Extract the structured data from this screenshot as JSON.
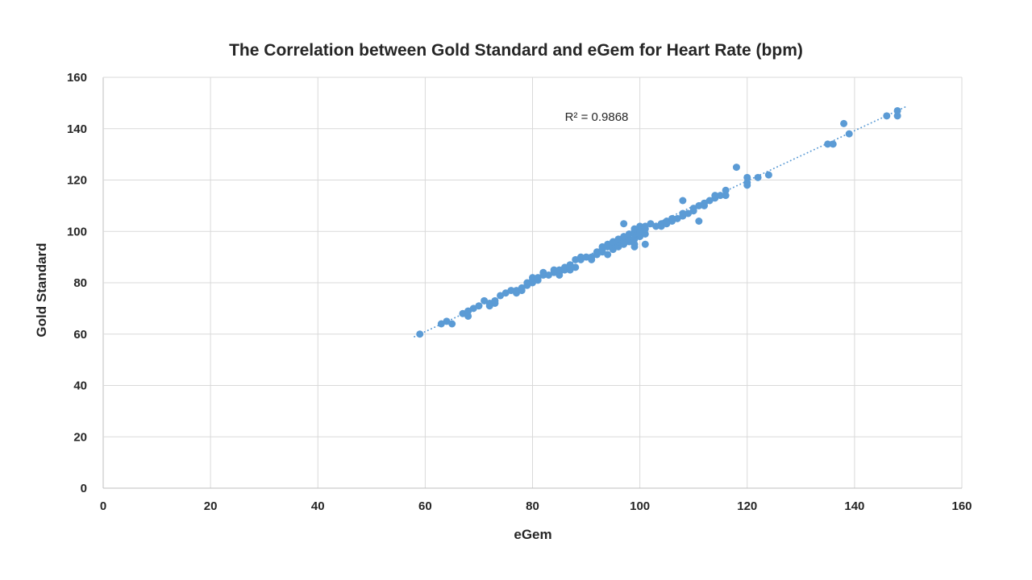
{
  "chart_data": {
    "type": "scatter",
    "title": "The Correlation between Gold Standard and eGem for Heart Rate (bpm)",
    "xlabel": "eGem",
    "ylabel": "Gold Standard",
    "xlim": [
      0,
      160
    ],
    "ylim": [
      0,
      160
    ],
    "xticks": [
      0,
      20,
      40,
      60,
      80,
      100,
      120,
      140,
      160
    ],
    "yticks": [
      0,
      20,
      40,
      60,
      80,
      100,
      120,
      140,
      160
    ],
    "grid": true,
    "legend": "none",
    "annotation": "R² = 0.9868",
    "r_squared": 0.9868,
    "marker_color": "#5B9BD5",
    "gridline_color": "#D9D9D9",
    "axisline_color": "#BFBFBF",
    "text_color": "#262626",
    "trendline": {
      "style": "dotted",
      "color": "#5B9BD5",
      "x1": 58,
      "y1": 59.0,
      "x2": 149.5,
      "y2": 148.5
    },
    "points": [
      [
        59,
        60
      ],
      [
        63,
        64
      ],
      [
        64,
        65
      ],
      [
        65,
        64
      ],
      [
        67,
        68
      ],
      [
        68,
        67
      ],
      [
        68,
        69
      ],
      [
        69,
        70
      ],
      [
        70,
        71
      ],
      [
        71,
        73
      ],
      [
        72,
        71
      ],
      [
        72,
        72
      ],
      [
        73,
        72
      ],
      [
        73,
        73
      ],
      [
        74,
        75
      ],
      [
        75,
        76
      ],
      [
        76,
        77
      ],
      [
        77,
        76
      ],
      [
        77,
        77
      ],
      [
        78,
        77
      ],
      [
        78,
        78
      ],
      [
        79,
        79
      ],
      [
        79,
        80
      ],
      [
        80,
        80
      ],
      [
        80,
        81
      ],
      [
        80,
        82
      ],
      [
        81,
        81
      ],
      [
        81,
        82
      ],
      [
        82,
        83
      ],
      [
        82,
        84
      ],
      [
        83,
        83
      ],
      [
        84,
        84
      ],
      [
        84,
        85
      ],
      [
        85,
        83
      ],
      [
        85,
        84
      ],
      [
        85,
        85
      ],
      [
        86,
        85
      ],
      [
        86,
        86
      ],
      [
        87,
        85
      ],
      [
        87,
        86
      ],
      [
        87,
        87
      ],
      [
        88,
        86
      ],
      [
        88,
        89
      ],
      [
        89,
        89
      ],
      [
        89,
        90
      ],
      [
        90,
        90
      ],
      [
        91,
        89
      ],
      [
        91,
        90
      ],
      [
        92,
        91
      ],
      [
        92,
        92
      ],
      [
        93,
        92
      ],
      [
        93,
        93
      ],
      [
        93,
        94
      ],
      [
        94,
        91
      ],
      [
        94,
        94
      ],
      [
        94,
        95
      ],
      [
        95,
        93
      ],
      [
        95,
        94
      ],
      [
        95,
        95
      ],
      [
        95,
        96
      ],
      [
        96,
        94
      ],
      [
        96,
        95
      ],
      [
        96,
        96
      ],
      [
        96,
        97
      ],
      [
        97,
        95
      ],
      [
        97,
        96
      ],
      [
        97,
        98
      ],
      [
        97,
        103
      ],
      [
        98,
        96
      ],
      [
        98,
        97
      ],
      [
        98,
        99
      ],
      [
        99,
        94
      ],
      [
        99,
        95
      ],
      [
        99,
        97
      ],
      [
        99,
        99
      ],
      [
        99,
        100
      ],
      [
        99,
        101
      ],
      [
        100,
        98
      ],
      [
        100,
        99
      ],
      [
        100,
        100
      ],
      [
        100,
        102
      ],
      [
        101,
        95
      ],
      [
        101,
        99
      ],
      [
        101,
        101
      ],
      [
        101,
        102
      ],
      [
        102,
        103
      ],
      [
        103,
        102
      ],
      [
        104,
        102
      ],
      [
        104,
        103
      ],
      [
        105,
        103
      ],
      [
        105,
        104
      ],
      [
        106,
        104
      ],
      [
        106,
        105
      ],
      [
        107,
        105
      ],
      [
        108,
        106
      ],
      [
        108,
        107
      ],
      [
        108,
        112
      ],
      [
        109,
        107
      ],
      [
        110,
        108
      ],
      [
        110,
        109
      ],
      [
        111,
        104
      ],
      [
        111,
        110
      ],
      [
        112,
        110
      ],
      [
        112,
        111
      ],
      [
        113,
        112
      ],
      [
        114,
        113
      ],
      [
        114,
        114
      ],
      [
        115,
        114
      ],
      [
        116,
        114
      ],
      [
        116,
        116
      ],
      [
        118,
        125
      ],
      [
        120,
        118
      ],
      [
        120,
        119
      ],
      [
        120,
        121
      ],
      [
        122,
        121
      ],
      [
        124,
        122
      ],
      [
        135,
        134
      ],
      [
        136,
        134
      ],
      [
        138,
        142
      ],
      [
        139,
        138
      ],
      [
        146,
        145
      ],
      [
        148,
        145
      ],
      [
        148,
        147
      ]
    ]
  }
}
